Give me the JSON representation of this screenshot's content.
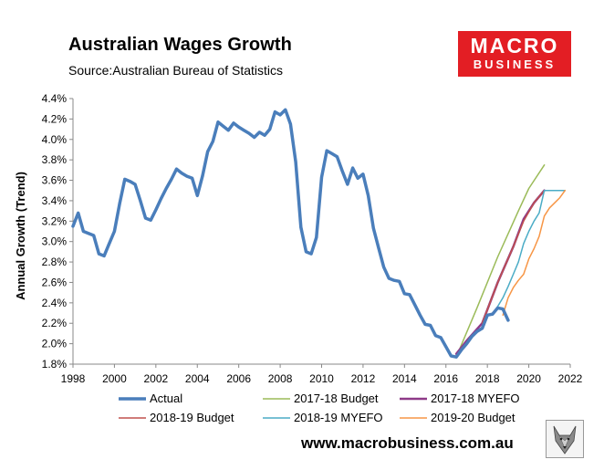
{
  "header": {
    "title": "Australian Wages Growth",
    "source": "Source:Australian Bureau of Statistics"
  },
  "logo": {
    "line1": "MACRO",
    "line2": "BUSINESS"
  },
  "footer": {
    "website": "www.macrobusiness.com.au"
  },
  "colors": {
    "logo_red": "#e31e24",
    "actual": "#4a7ebb",
    "budget_1718": "#9bbb59",
    "myefo_1718": "#8e3a88",
    "budget_1819": "#c0504d",
    "myefo_1819": "#4bacc6",
    "budget_1920": "#f79646"
  },
  "chart_data": {
    "type": "line",
    "title": "Australian Wages Growth",
    "xlabel": "",
    "ylabel": "Annual Growth (Trend)",
    "xlim": [
      1998,
      2022
    ],
    "ylim": [
      1.8,
      4.4
    ],
    "x_ticks": [
      1998,
      2000,
      2002,
      2004,
      2006,
      2008,
      2010,
      2012,
      2014,
      2016,
      2018,
      2020,
      2022
    ],
    "y_ticks": [
      1.8,
      2.0,
      2.2,
      2.4,
      2.6,
      2.8,
      3.0,
      3.2,
      3.4,
      3.6,
      3.8,
      4.0,
      4.2,
      4.4
    ],
    "y_tick_format": "percent_1dp",
    "grid": false,
    "legend_position": "bottom",
    "series": [
      {
        "name": "Actual",
        "color": "#4a7ebb",
        "width": 3.5,
        "x": [
          1998.0,
          1998.25,
          1998.5,
          1998.75,
          1999.0,
          1999.25,
          1999.5,
          1999.75,
          2000.0,
          2000.25,
          2000.5,
          2000.75,
          2001.0,
          2001.25,
          2001.5,
          2001.75,
          2002.0,
          2002.25,
          2002.5,
          2002.75,
          2003.0,
          2003.25,
          2003.5,
          2003.75,
          2004.0,
          2004.25,
          2004.5,
          2004.75,
          2005.0,
          2005.25,
          2005.5,
          2005.75,
          2006.0,
          2006.25,
          2006.5,
          2006.75,
          2007.0,
          2007.25,
          2007.5,
          2007.75,
          2008.0,
          2008.25,
          2008.5,
          2008.75,
          2009.0,
          2009.25,
          2009.5,
          2009.75,
          2010.0,
          2010.25,
          2010.5,
          2010.75,
          2011.0,
          2011.25,
          2011.5,
          2011.75,
          2012.0,
          2012.25,
          2012.5,
          2012.75,
          2013.0,
          2013.25,
          2013.5,
          2013.75,
          2014.0,
          2014.25,
          2014.5,
          2014.75,
          2015.0,
          2015.25,
          2015.5,
          2015.75,
          2016.0,
          2016.25,
          2016.5,
          2016.75,
          2017.0,
          2017.25,
          2017.5,
          2017.75,
          2018.0,
          2018.25,
          2018.5,
          2018.75,
          2019.0
        ],
        "y": [
          3.15,
          3.28,
          3.1,
          3.08,
          3.06,
          2.88,
          2.86,
          2.98,
          3.1,
          3.37,
          3.61,
          3.59,
          3.56,
          3.4,
          3.23,
          3.21,
          3.31,
          3.42,
          3.52,
          3.61,
          3.71,
          3.67,
          3.64,
          3.62,
          3.45,
          3.64,
          3.88,
          3.98,
          4.17,
          4.13,
          4.09,
          4.16,
          4.12,
          4.09,
          4.06,
          4.02,
          4.07,
          4.04,
          4.1,
          4.27,
          4.24,
          4.29,
          4.15,
          3.78,
          3.14,
          2.9,
          2.88,
          3.04,
          3.63,
          3.89,
          3.86,
          3.83,
          3.69,
          3.56,
          3.72,
          3.62,
          3.66,
          3.45,
          3.13,
          2.94,
          2.75,
          2.64,
          2.62,
          2.61,
          2.49,
          2.48,
          2.38,
          2.28,
          2.19,
          2.18,
          2.08,
          2.06,
          1.97,
          1.88,
          1.87,
          1.94,
          2.0,
          2.07,
          2.12,
          2.15,
          2.28,
          2.29,
          2.35,
          2.34,
          2.23
        ]
      },
      {
        "name": "2017-18 Budget",
        "color": "#9bbb59",
        "width": 1.5,
        "x": [
          2016.5,
          2017.5,
          2018.5,
          2019.5,
          2020.0,
          2020.75
        ],
        "y": [
          1.87,
          2.35,
          2.85,
          3.3,
          3.52,
          3.75
        ]
      },
      {
        "name": "2017-18 MYEFO",
        "color": "#8e3a88",
        "width": 2.5,
        "x": [
          2016.5,
          2017.0,
          2017.75,
          2018.5,
          2019.25,
          2019.75,
          2020.25,
          2020.75
        ],
        "y": [
          1.9,
          2.03,
          2.2,
          2.6,
          2.95,
          3.22,
          3.38,
          3.5
        ]
      },
      {
        "name": "2018-19 Budget",
        "color": "#c0504d",
        "width": 1.5,
        "x": [
          2017.75,
          2018.5,
          2019.25,
          2019.75,
          2020.25,
          2020.75
        ],
        "y": [
          2.2,
          2.6,
          2.95,
          3.2,
          3.38,
          3.5
        ]
      },
      {
        "name": "2018-19 MYEFO",
        "color": "#4bacc6",
        "width": 1.5,
        "x": [
          2018.25,
          2018.75,
          2019.0,
          2019.25,
          2019.5,
          2019.75,
          2020.0,
          2020.25,
          2020.5,
          2020.75,
          2021.0,
          2021.25,
          2021.75
        ],
        "y": [
          2.28,
          2.45,
          2.56,
          2.68,
          2.8,
          2.98,
          3.1,
          3.2,
          3.28,
          3.5,
          3.5,
          3.5,
          3.5
        ]
      },
      {
        "name": "2019-20 Budget",
        "color": "#f79646",
        "width": 1.5,
        "x": [
          2018.75,
          2019.0,
          2019.25,
          2019.5,
          2019.75,
          2020.0,
          2020.25,
          2020.5,
          2020.75,
          2021.0,
          2021.25,
          2021.5,
          2021.75
        ],
        "y": [
          2.28,
          2.45,
          2.55,
          2.62,
          2.68,
          2.83,
          2.93,
          3.05,
          3.25,
          3.33,
          3.38,
          3.43,
          3.5
        ]
      }
    ]
  }
}
